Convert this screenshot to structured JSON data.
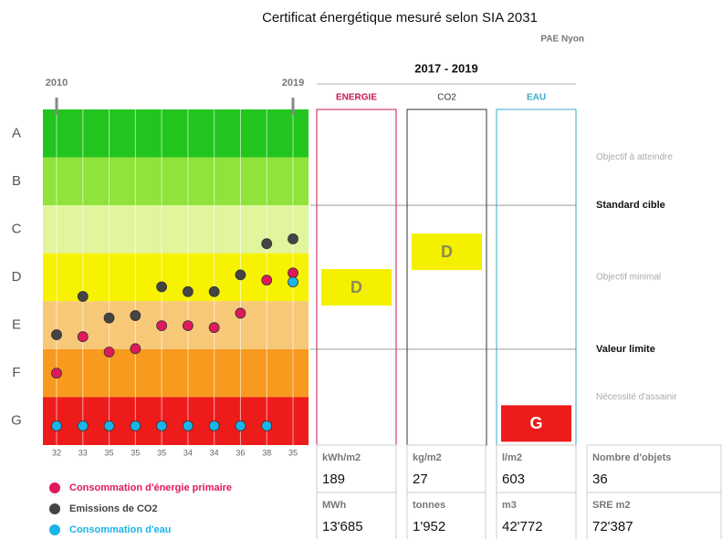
{
  "chart_data": {
    "type": "dot",
    "title": "Certificat énergétique mesuré selon SIA 2031",
    "subtitle": "PAE Nyon",
    "categories": [
      "2010",
      null,
      null,
      null,
      null,
      null,
      null,
      null,
      null,
      "2019"
    ],
    "classes": [
      "A",
      "B",
      "C",
      "D",
      "E",
      "F",
      "G"
    ],
    "class_colors": [
      "#22c51d",
      "#8fe33a",
      "#e0f59c",
      "#f7f200",
      "#f8c879",
      "#f79a1e",
      "#ee1b1b"
    ],
    "ylim": [
      0.5,
      7.5
    ],
    "inverted": true,
    "object_counts": [
      32,
      33,
      35,
      35,
      35,
      34,
      34,
      36,
      38,
      35
    ],
    "series": [
      {
        "name": "Consommation d'énergie primaire",
        "color": "#e0195a",
        "values": [
          6.0,
          5.24,
          5.56,
          5.49,
          5.01,
          5.01,
          5.05,
          4.75,
          4.06,
          3.91
        ]
      },
      {
        "name": "Emissions de CO2",
        "color": "#444444",
        "values": [
          5.2,
          4.4,
          4.85,
          4.8,
          4.2,
          4.3,
          4.3,
          3.95,
          3.3,
          3.2
        ]
      },
      {
        "name": "Consommation d'eau",
        "color": "#1ab4e8",
        "values": [
          7.1,
          7.1,
          7.1,
          7.1,
          7.1,
          7.1,
          7.1,
          7.1,
          7.1,
          4.1
        ]
      }
    ],
    "period": "2017 - 2019",
    "indicators": [
      {
        "name": "ENERGIE",
        "color": "#c8174a",
        "rating": "D",
        "rating_color": "#f5f000",
        "level": 4.21
      },
      {
        "name": "CO2",
        "color": "#333333",
        "rating": "D",
        "rating_color": "#f5f000",
        "level": 3.47
      },
      {
        "name": "EAU",
        "color": "#3aa9c9",
        "rating": "G",
        "rating_color": "#ee1b1b",
        "level": 7.05
      }
    ],
    "thresholds": [
      {
        "label": "Objectif à atteindre",
        "level": 1.5,
        "bold": false
      },
      {
        "label": "Standard cible",
        "level": 2.5,
        "bold": true
      },
      {
        "label": "Objectif minimal",
        "level": 4.0,
        "bold": false
      },
      {
        "label": "Valeur limite",
        "level": 5.5,
        "bold": true
      },
      {
        "label": "Nécessité d'assainir",
        "level": 6.5,
        "bold": false
      }
    ],
    "table": {
      "rows": [
        [
          {
            "unit": "kWh/m2",
            "value": "189"
          },
          {
            "unit": "kg/m2",
            "value": "27"
          },
          {
            "unit": "l/m2",
            "value": "603"
          },
          {
            "unit": "Nombre d'objets",
            "value": "36"
          }
        ],
        [
          {
            "unit": "MWh",
            "value": "13'685"
          },
          {
            "unit": "tonnes",
            "value": "1'952"
          },
          {
            "unit": "m3",
            "value": "42'772"
          },
          {
            "unit": "SRE m2",
            "value": "72'387"
          }
        ]
      ]
    }
  }
}
